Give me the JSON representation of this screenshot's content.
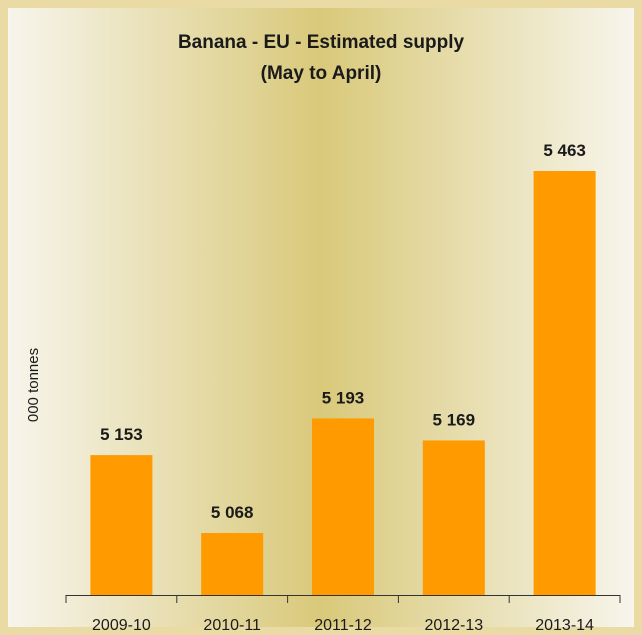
{
  "chart_data": {
    "type": "bar",
    "title": "Banana - EU - Estimated supply",
    "subtitle": "(May to April)",
    "ylabel": "000 tonnes",
    "xlabel": "",
    "categories": [
      "2009-10",
      "2010-11",
      "2011-12",
      "2012-13",
      "2013-14"
    ],
    "values": [
      5153,
      5068,
      5193,
      5169,
      5463
    ],
    "value_labels": [
      "5 153",
      "5 068",
      "5 193",
      "5 169",
      "5 463"
    ],
    "ylim": [
      5000,
      5500
    ],
    "grid": false,
    "legend": "none",
    "colors": {
      "bar": "#ff9a00",
      "background_edge": "#f4f1e4",
      "background_center": "#d9c97a",
      "frame": "#e9dba3",
      "axis": "#333333"
    }
  }
}
